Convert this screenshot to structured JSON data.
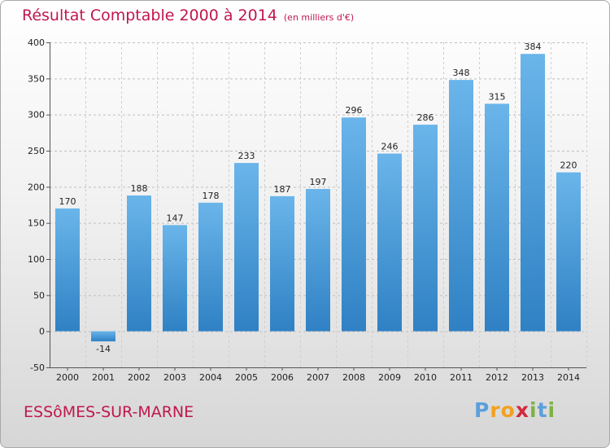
{
  "header": {
    "title": "Résultat Comptable 2000 à 2014",
    "subtitle": "(en milliers d'€)"
  },
  "footer": {
    "commune": "ESSôMES-SUR-MARNE",
    "logo_letters": [
      "P",
      "r",
      "o",
      "x",
      "i",
      "t",
      "i"
    ],
    "logo_colors": [
      "#5aa0dc",
      "#f2a11f",
      "#f2a11f",
      "#d3293c",
      "#7cb342",
      "#5aa0dc",
      "#7cb342"
    ]
  },
  "colors": {
    "title": "#c0174d",
    "bar_top": "#6ab5ea",
    "bar_bottom": "#2f81c4"
  },
  "chart_data": {
    "type": "bar",
    "title": "Résultat Comptable 2000 à 2014",
    "ylabel": "(en milliers d'€)",
    "xlabel": "",
    "categories": [
      "2000",
      "2001",
      "2002",
      "2003",
      "2004",
      "2005",
      "2006",
      "2007",
      "2008",
      "2009",
      "2010",
      "2011",
      "2012",
      "2013",
      "2014"
    ],
    "values": [
      170,
      -14,
      188,
      147,
      178,
      233,
      187,
      197,
      296,
      246,
      286,
      348,
      315,
      384,
      220
    ],
    "ylim": [
      -50,
      400
    ],
    "yticks": [
      -50,
      0,
      50,
      100,
      150,
      200,
      250,
      300,
      350,
      400
    ],
    "grid": true
  }
}
